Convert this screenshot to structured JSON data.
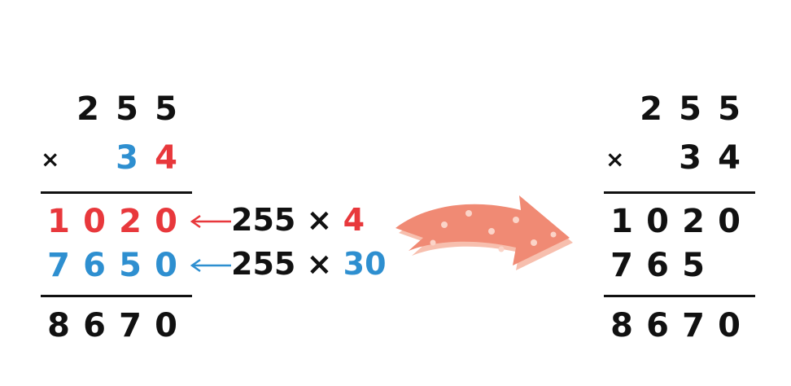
{
  "colors": {
    "red": "#e8383c",
    "blue": "#2e8fd0",
    "black": "#111111",
    "arrow": "#f08a74"
  },
  "left": {
    "multiplicand": [
      "2",
      "5",
      "5"
    ],
    "times_sign": "×",
    "multiplier": [
      "3",
      "4"
    ],
    "partial1": [
      "1",
      "0",
      "2",
      "0"
    ],
    "partial2": [
      "7",
      "6",
      "5",
      "0"
    ],
    "product": [
      "8",
      "6",
      "7",
      "0"
    ]
  },
  "notes": {
    "row1": {
      "base": "255 × ",
      "factor": "4"
    },
    "row2": {
      "base": "255 × ",
      "factor": "30"
    }
  },
  "transform_arrow_icon": "curved-arrow-right",
  "right": {
    "multiplicand": [
      "2",
      "5",
      "5"
    ],
    "times_sign": "×",
    "multiplier": [
      "3",
      "4"
    ],
    "partial1": [
      "1",
      "0",
      "2",
      "0"
    ],
    "partial2": [
      "7",
      "6",
      "5"
    ],
    "product": [
      "8",
      "6",
      "7",
      "0"
    ]
  }
}
